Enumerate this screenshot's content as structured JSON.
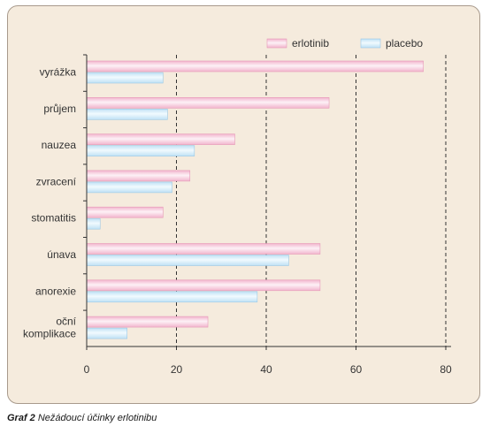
{
  "caption": {
    "figure_label": "Graf 2",
    "text": "Nežádoucí účinky erlotinibu"
  },
  "colors": {
    "panel_background": "#f5ebdd",
    "panel_border": "#a89a8c",
    "erlotinib_bar": "#f2b5cd",
    "erlotinib_highlight": "#fdf1f6",
    "placebo_bar": "#bfe1f5",
    "placebo_highlight": "#f1fafe",
    "grid": "#333333"
  },
  "chart_data": {
    "type": "bar",
    "orientation": "horizontal",
    "categories": [
      [
        "vyrážka"
      ],
      [
        "průjem"
      ],
      [
        "nauzea"
      ],
      [
        "zvracení"
      ],
      [
        "stomatitis"
      ],
      [
        "únava"
      ],
      [
        "anorexie"
      ],
      [
        "oční",
        "komplikace"
      ]
    ],
    "series": [
      {
        "name": "erlotinib",
        "values": [
          75,
          54,
          33,
          23,
          17,
          52,
          52,
          27
        ]
      },
      {
        "name": "placebo",
        "values": [
          17,
          18,
          24,
          19,
          3,
          45,
          38,
          9
        ]
      }
    ],
    "xlim": [
      0,
      80
    ],
    "xticks": [
      "0",
      "20",
      "40",
      "60",
      "80"
    ],
    "grid": "vertical dashed lines at 20, 40, 60, 80",
    "legend": "top-right",
    "title": "",
    "xlabel": "",
    "ylabel": ""
  }
}
